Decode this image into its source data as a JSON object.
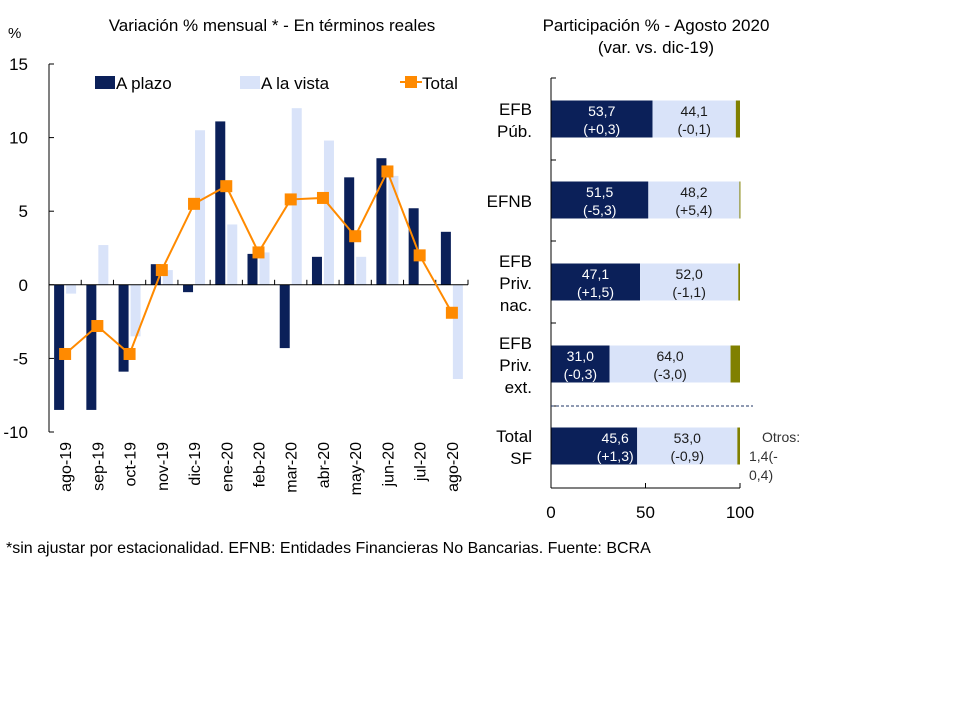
{
  "colors": {
    "plazo": "#0b2059",
    "vista": "#d9e3f9",
    "total": "#ff8a00",
    "otros": "#808000"
  },
  "chart_data": [
    {
      "type": "bar",
      "title": "Variación % mensual * - En términos reales",
      "ylabel": "%",
      "xlabel": "",
      "ylim": [
        -10,
        15
      ],
      "yticks": [
        15,
        10,
        5,
        0,
        -5,
        -10
      ],
      "ytick_labels": [
        "15",
        "10",
        "5",
        "0",
        "-5",
        "-10"
      ],
      "grid": false,
      "legend_position": "top",
      "categories": [
        "ago-19",
        "sep-19",
        "oct-19",
        "nov-19",
        "dic-19",
        "ene-20",
        "feb-20",
        "mar-20",
        "abr-20",
        "may-20",
        "jun-20",
        "jul-20",
        "ago-20"
      ],
      "series": [
        {
          "name": "A plazo",
          "kind": "bar",
          "values": [
            -8.5,
            -8.5,
            -5.9,
            1.4,
            -0.5,
            11.1,
            2.1,
            -4.3,
            1.9,
            7.3,
            8.6,
            5.2,
            3.6
          ]
        },
        {
          "name": "A la vista",
          "kind": "bar",
          "values": [
            -0.6,
            2.7,
            -3.5,
            1.0,
            10.5,
            4.1,
            2.2,
            12.0,
            9.8,
            1.9,
            7.4,
            0.0,
            -6.4
          ]
        },
        {
          "name": "Total",
          "kind": "line",
          "values": [
            -4.7,
            -2.8,
            -4.7,
            1.0,
            5.5,
            6.7,
            2.2,
            5.8,
            5.9,
            3.3,
            7.7,
            2.0,
            -1.9
          ]
        }
      ]
    },
    {
      "type": "bar",
      "orientation": "horizontal",
      "stacked": true,
      "title": "Participación % - Agosto 2020",
      "subtitle": "(var. vs. dic-19)",
      "xlim": [
        0,
        100
      ],
      "xticks": [
        0,
        50,
        100
      ],
      "xtick_labels": [
        "0",
        "50",
        "100"
      ],
      "grid": false,
      "categories": [
        {
          "lines": [
            "EFB",
            "Púb."
          ]
        },
        {
          "lines": [
            "EFNB"
          ]
        },
        {
          "lines": [
            "EFB",
            "Priv.",
            "nac."
          ]
        },
        {
          "lines": [
            "EFB",
            "Priv.",
            "ext."
          ]
        },
        {
          "lines": [
            "Total",
            "SF"
          ]
        }
      ],
      "series": [
        {
          "name": "A plazo",
          "values": [
            53.7,
            51.5,
            47.1,
            31.0,
            45.6
          ],
          "labels": [
            "53,7",
            "51,5",
            "47,1",
            "31,0",
            "45,6"
          ],
          "changes": [
            "(+0,3)",
            "(-5,3)",
            "(+1,5)",
            "(-0,3)",
            "(+1,3)"
          ]
        },
        {
          "name": "A la vista",
          "values": [
            44.1,
            48.2,
            52.0,
            64.0,
            53.0
          ],
          "labels": [
            "44,1",
            "48,2",
            "52,0",
            "64,0",
            "53,0"
          ],
          "changes": [
            "(-0,1)",
            "(+5,4)",
            "(-1,1)",
            "(-3,0)",
            "(-0,9)"
          ]
        },
        {
          "name": "Otros",
          "values": [
            2.2,
            0.3,
            0.9,
            5.0,
            1.4
          ]
        }
      ],
      "annotation": {
        "lines": [
          "Otros:",
          "1,4(-",
          "0,4)"
        ]
      }
    }
  ],
  "footnote": "*sin ajustar por estacionalidad.  EFNB: Entidades Financieras No Bancarias. Fuente: BCRA"
}
